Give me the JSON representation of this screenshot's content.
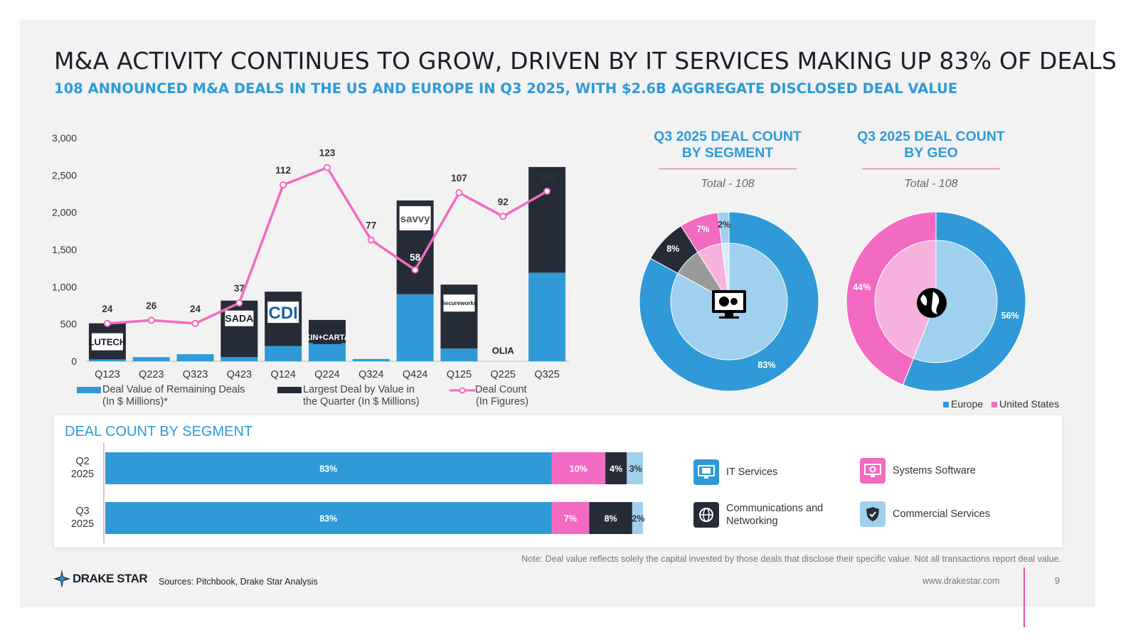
{
  "header": {
    "title": "M&A ACTIVITY CONTINUES TO GROW, DRIVEN BY IT SERVICES MAKING UP 83% OF DEALS",
    "subtitle": "108 ANNOUNCED M&A DEALS IN THE US AND EUROPE IN Q3 2025, WITH $2.6B AGGREGATE DISCLOSED DEAL VALUE"
  },
  "colors": {
    "blue": "#2f9ad7",
    "dark": "#262c37",
    "pink": "#f26ac2",
    "lightblue": "#9fd0ee",
    "lightpink": "#f8b2de",
    "gray": "#9a9a9a"
  },
  "chart_data": [
    {
      "type": "bar",
      "stacked": true,
      "categories": [
        "Q123",
        "Q223",
        "Q323",
        "Q423",
        "Q124",
        "Q224",
        "Q324",
        "Q424",
        "Q125",
        "Q225",
        "Q325"
      ],
      "series": [
        {
          "name": "Deal Value of Remaining Deals (In $ Millions)*",
          "values": [
            25,
            55,
            95,
            55,
            205,
            245,
            30,
            900,
            170,
            0,
            1190
          ]
        },
        {
          "name": "Largest Deal by Value in the Quarter (In $ Millions)",
          "values": [
            485,
            0,
            0,
            760,
            730,
            310,
            0,
            1260,
            860,
            0,
            1420
          ]
        }
      ],
      "line_series": {
        "name": "Deal Count (In Figures)",
        "values": [
          24,
          26,
          24,
          37,
          112,
          123,
          77,
          58,
          107,
          92,
          108
        ]
      },
      "deal_logos": [
        "LUTECH",
        "",
        "",
        "SADA",
        "CDI",
        "KIN+CARTA",
        "",
        "savvy",
        "Secureworks",
        "OLIA",
        ""
      ],
      "ylim": [
        0,
        3000
      ],
      "yticks": [
        "0",
        "500",
        "1,000",
        "1,500",
        "2,000",
        "2,500",
        "3,000"
      ],
      "legend": [
        {
          "line1": "Deal Value of Remaining Deals",
          "line2": "(In $ Millions)*"
        },
        {
          "line1": "Largest Deal by Value in",
          "line2": "the Quarter (In $ Millions)"
        },
        {
          "line1": "Deal Count",
          "line2": "(In Figures)"
        }
      ]
    },
    {
      "type": "pie",
      "title_line1": "Q3 2025 DEAL COUNT",
      "title_line2": "BY SEGMENT",
      "total": "Total - 108",
      "labels": [
        "IT Services",
        "Communications and Networking",
        "Systems Software",
        "Commercial Services"
      ],
      "values": [
        83,
        8,
        7,
        2
      ],
      "value_labels": [
        "83%",
        "8%",
        "7%",
        "2%"
      ]
    },
    {
      "type": "pie",
      "title_line1": "Q3 2025 DEAL COUNT",
      "title_line2": "BY GEO",
      "total": "Total - 108",
      "labels": [
        "Europe",
        "United States"
      ],
      "values": [
        56,
        44
      ],
      "value_labels": [
        "56%",
        "44%"
      ]
    },
    {
      "type": "bar",
      "orientation": "horizontal",
      "stacked": true,
      "title": "DEAL COUNT BY SEGMENT",
      "categories": [
        {
          "line1": "Q2",
          "line2": "2025"
        },
        {
          "line1": "Q3",
          "line2": "2025"
        }
      ],
      "series": [
        {
          "name": "IT Services",
          "values": [
            83,
            83
          ],
          "labels": [
            "83%",
            "83%"
          ]
        },
        {
          "name": "Systems Software",
          "values": [
            10,
            7
          ],
          "labels": [
            "10%",
            "7%"
          ]
        },
        {
          "name": "Communications and Networking",
          "values": [
            4,
            8
          ],
          "labels": [
            "4%",
            "8%"
          ]
        },
        {
          "name": "Commercial Services",
          "values": [
            3,
            2
          ],
          "labels": [
            "3%",
            "2%"
          ]
        }
      ]
    }
  ],
  "segment_legend": {
    "it_services": "IT Services",
    "systems_software": "Systems Software",
    "comms_line1": "Communications and",
    "comms_line2": "Networking",
    "commercial_services": "Commercial Services"
  },
  "geo_legend": {
    "europe": "Europe",
    "us": "United States"
  },
  "footer": {
    "note": "Note: Deal value reflects solely the capital invested by those deals that disclose their specific value. Not all transactions report deal value.",
    "sources": "Sources: Pitchbook, Drake Star Analysis",
    "website": "www.drakestar.com",
    "page": "9",
    "logo_text": "DRAKE STAR"
  }
}
